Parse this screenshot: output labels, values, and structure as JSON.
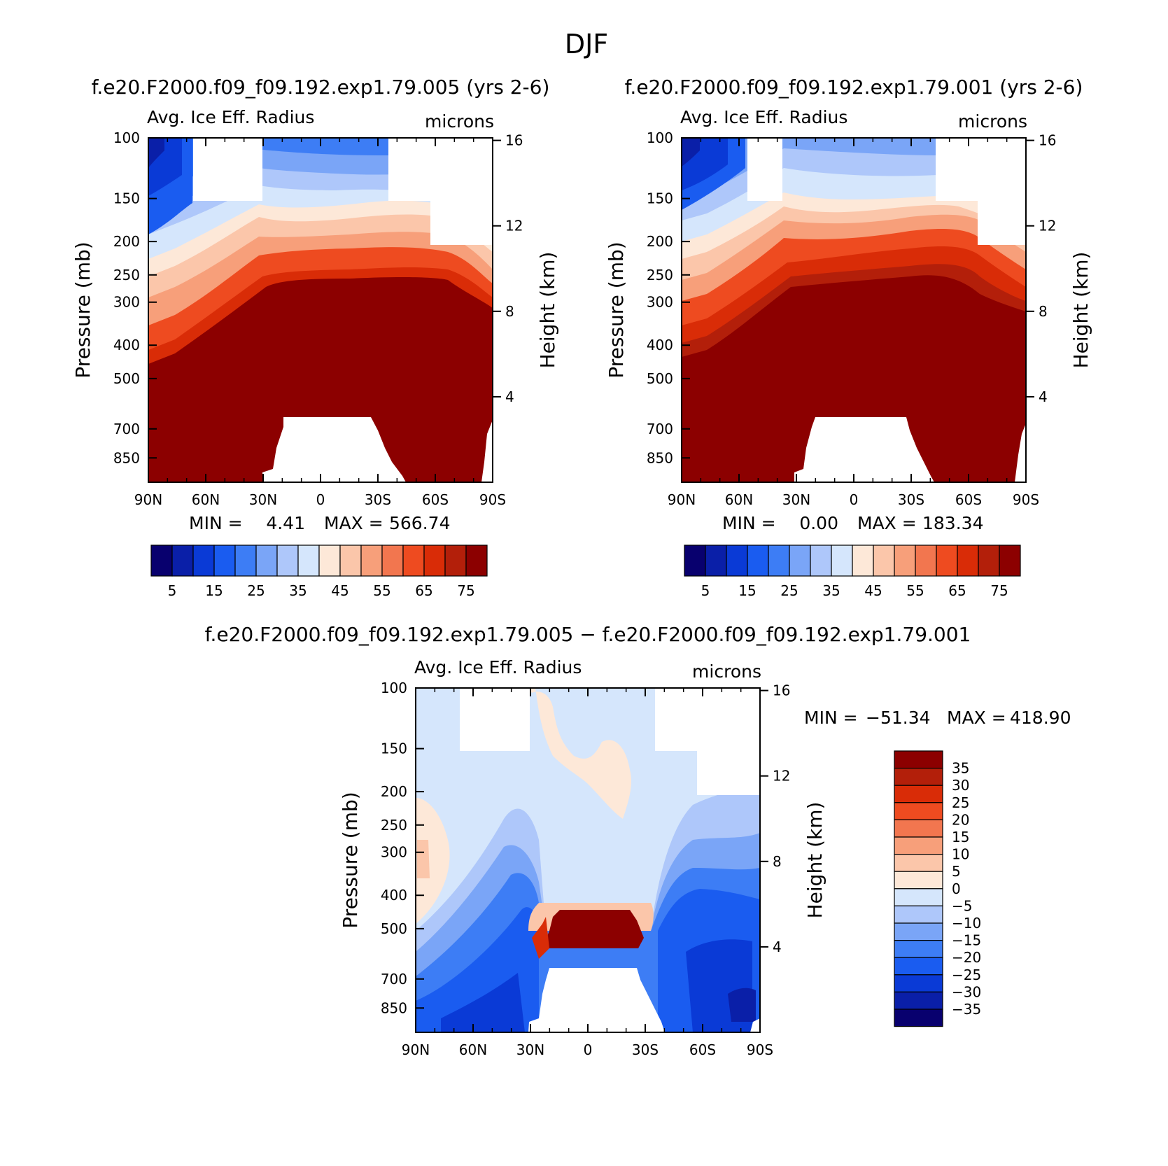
{
  "figure_title": "DJF",
  "colors": {
    "full_scale": [
      "#08006e",
      "#0a1fa8",
      "#0a3ad6",
      "#1a5cf0",
      "#3d7df5",
      "#7aa5f7",
      "#aec7fa",
      "#d5e6fc",
      "#fde8d8",
      "#fbc6aa",
      "#f79f7a",
      "#f2764f",
      "#ee4b20",
      "#d92c07",
      "#b31f0a",
      "#8c0000"
    ],
    "diff_scale": [
      "#08006e",
      "#0a1fa8",
      "#0a3ad6",
      "#1a5cf0",
      "#3d7df5",
      "#7aa5f7",
      "#aec7fa",
      "#d5e6fc",
      "#fde8d8",
      "#fbc6aa",
      "#f79f7a",
      "#f2764f",
      "#ee4b20",
      "#d92c07",
      "#b31f0a",
      "#8c0000"
    ]
  },
  "chart_data": [
    {
      "type": "heatmap",
      "case_title": "f.e20.F2000.f09_f09.192.exp1.79.005 (yrs 2-6)",
      "left_title": "Avg. Ice Eff. Radius",
      "right_title": "microns",
      "ylabel": "Pressure (mb)",
      "ylabel_right": "Height (km)",
      "y_ticks": [
        "100",
        "150",
        "200",
        "250",
        "300",
        "400",
        "500",
        "700",
        "850"
      ],
      "y_values": [
        100,
        150,
        200,
        250,
        300,
        400,
        500,
        700,
        850
      ],
      "ylim": [
        100,
        1000
      ],
      "height_ticks": [
        "16",
        "12",
        "8",
        "4"
      ],
      "height_values": [
        16,
        12,
        8,
        4
      ],
      "x_ticks": [
        "90N",
        "60N",
        "30N",
        "0",
        "30S",
        "60S",
        "90S"
      ],
      "x_values": [
        90,
        60,
        30,
        0,
        -30,
        -60,
        -90
      ],
      "xlim": [
        90,
        -90
      ],
      "min_label": "MIN =",
      "min_value": "4.41",
      "max_label": "MAX =",
      "max_value": "566.74",
      "colorbar_ticks": [
        "5",
        "15",
        "25",
        "35",
        "45",
        "55",
        "65",
        "75"
      ],
      "levels": [
        5,
        10,
        15,
        20,
        25,
        30,
        35,
        40,
        45,
        50,
        55,
        60,
        65,
        70,
        75
      ]
    },
    {
      "type": "heatmap",
      "case_title": "f.e20.F2000.f09_f09.192.exp1.79.001 (yrs 2-6)",
      "left_title": "Avg. Ice Eff. Radius",
      "right_title": "microns",
      "ylabel": "Pressure (mb)",
      "ylabel_right": "Height (km)",
      "y_ticks": [
        "100",
        "150",
        "200",
        "250",
        "300",
        "400",
        "500",
        "700",
        "850"
      ],
      "y_values": [
        100,
        150,
        200,
        250,
        300,
        400,
        500,
        700,
        850
      ],
      "ylim": [
        100,
        1000
      ],
      "height_ticks": [
        "16",
        "12",
        "8",
        "4"
      ],
      "height_values": [
        16,
        12,
        8,
        4
      ],
      "x_ticks": [
        "90N",
        "60N",
        "30N",
        "0",
        "30S",
        "60S",
        "90S"
      ],
      "x_values": [
        90,
        60,
        30,
        0,
        -30,
        -60,
        -90
      ],
      "xlim": [
        90,
        -90
      ],
      "min_label": "MIN =",
      "min_value": "0.00",
      "max_label": "MAX =",
      "max_value": "183.34",
      "colorbar_ticks": [
        "5",
        "15",
        "25",
        "35",
        "45",
        "55",
        "65",
        "75"
      ],
      "levels": [
        5,
        10,
        15,
        20,
        25,
        30,
        35,
        40,
        45,
        50,
        55,
        60,
        65,
        70,
        75
      ]
    },
    {
      "type": "heatmap",
      "case_title": "f.e20.F2000.f09_f09.192.exp1.79.005 − f.e20.F2000.f09_f09.192.exp1.79.001",
      "left_title": "Avg. Ice Eff. Radius",
      "right_title": "microns",
      "ylabel": "Pressure (mb)",
      "ylabel_right": "Height (km)",
      "y_ticks": [
        "100",
        "150",
        "200",
        "250",
        "300",
        "400",
        "500",
        "700",
        "850"
      ],
      "y_values": [
        100,
        150,
        200,
        250,
        300,
        400,
        500,
        700,
        850
      ],
      "ylim": [
        100,
        1000
      ],
      "height_ticks": [
        "16",
        "12",
        "8",
        "4"
      ],
      "height_values": [
        16,
        12,
        8,
        4
      ],
      "x_ticks": [
        "90N",
        "60N",
        "30N",
        "0",
        "30S",
        "60S",
        "90S"
      ],
      "x_values": [
        90,
        60,
        30,
        0,
        -30,
        -60,
        -90
      ],
      "xlim": [
        90,
        -90
      ],
      "min_label": "MIN =",
      "min_value": "−51.34",
      "max_label": "MAX =",
      "max_value": "418.90",
      "colorbar_ticks": [
        "35",
        "30",
        "25",
        "20",
        "15",
        "10",
        "5",
        "0",
        "−5",
        "−10",
        "−15",
        "−20",
        "−25",
        "−30",
        "−35"
      ],
      "levels": [
        -35,
        -30,
        -25,
        -20,
        -15,
        -10,
        -5,
        0,
        5,
        10,
        15,
        20,
        25,
        30,
        35
      ]
    }
  ]
}
